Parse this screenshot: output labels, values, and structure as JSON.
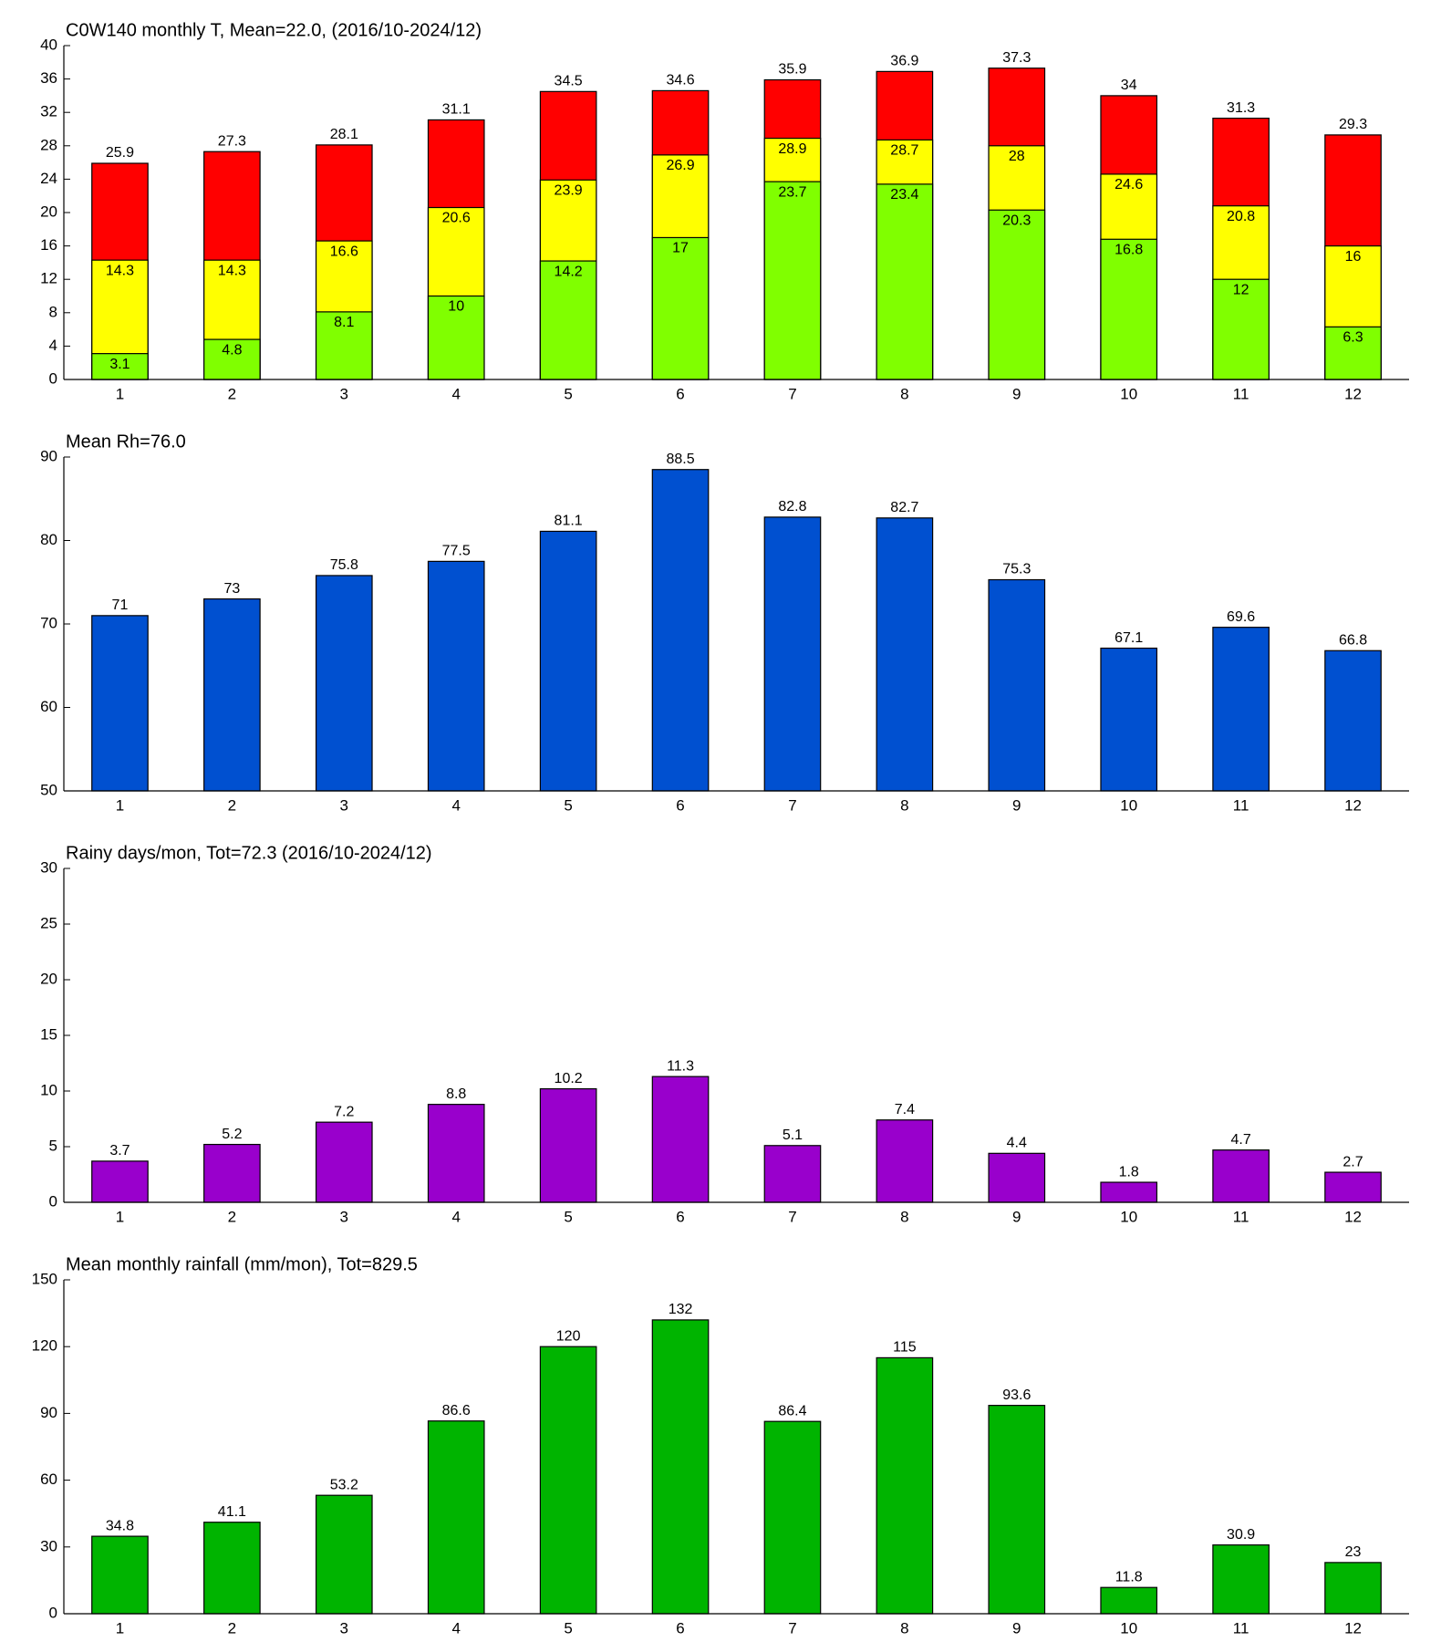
{
  "chart_data": [
    {
      "type": "bar",
      "title": "C0W140 monthly T, Mean=22.0, (2016/10-2024/12)",
      "categories": [
        "1",
        "2",
        "3",
        "4",
        "5",
        "6",
        "7",
        "8",
        "9",
        "10",
        "11",
        "12"
      ],
      "series": [
        {
          "color": "#ff0000",
          "values": [
            25.9,
            27.3,
            28.1,
            31.1,
            34.5,
            34.6,
            35.9,
            36.9,
            37.3,
            34,
            31.3,
            29.3
          ]
        },
        {
          "color": "#ffff00",
          "values": [
            14.3,
            14.3,
            16.6,
            20.6,
            23.9,
            26.9,
            28.9,
            28.7,
            28,
            24.6,
            20.8,
            16
          ]
        },
        {
          "color": "#80ff00",
          "values": [
            3.1,
            4.8,
            8.1,
            10,
            14.2,
            17,
            23.7,
            23.4,
            20.3,
            16.8,
            12,
            6.3
          ]
        }
      ],
      "ylim": [
        0,
        40
      ],
      "yticks": [
        0,
        4,
        8,
        12,
        16,
        20,
        24,
        28,
        32,
        36,
        40
      ]
    },
    {
      "type": "bar",
      "title": "Mean Rh=76.0",
      "categories": [
        "1",
        "2",
        "3",
        "4",
        "5",
        "6",
        "7",
        "8",
        "9",
        "10",
        "11",
        "12"
      ],
      "values": [
        71,
        73,
        75.8,
        77.5,
        81.1,
        88.5,
        82.8,
        82.7,
        75.3,
        67.1,
        69.6,
        66.8
      ],
      "color": "#0050d0",
      "ylim": [
        50,
        90
      ],
      "yticks": [
        50,
        60,
        70,
        80,
        90
      ]
    },
    {
      "type": "bar",
      "title": "Rainy days/mon, Tot=72.3 (2016/10-2024/12)",
      "categories": [
        "1",
        "2",
        "3",
        "4",
        "5",
        "6",
        "7",
        "8",
        "9",
        "10",
        "11",
        "12"
      ],
      "values": [
        3.7,
        5.2,
        7.2,
        8.8,
        10.2,
        11.3,
        5.1,
        7.4,
        4.4,
        1.8,
        4.7,
        2.7
      ],
      "color": "#9900cc",
      "ylim": [
        0,
        30
      ],
      "yticks": [
        0,
        5,
        10,
        15,
        20,
        25,
        30
      ]
    },
    {
      "type": "bar",
      "title": "Mean monthly rainfall (mm/mon), Tot=829.5",
      "categories": [
        "1",
        "2",
        "3",
        "4",
        "5",
        "6",
        "7",
        "8",
        "9",
        "10",
        "11",
        "12"
      ],
      "values": [
        34.8,
        41.1,
        53.2,
        86.6,
        120,
        132,
        86.4,
        115,
        93.6,
        11.8,
        30.9,
        23
      ],
      "color": "#00b400",
      "ylim": [
        0,
        150
      ],
      "yticks": [
        0,
        30,
        60,
        90,
        120,
        150
      ]
    }
  ]
}
